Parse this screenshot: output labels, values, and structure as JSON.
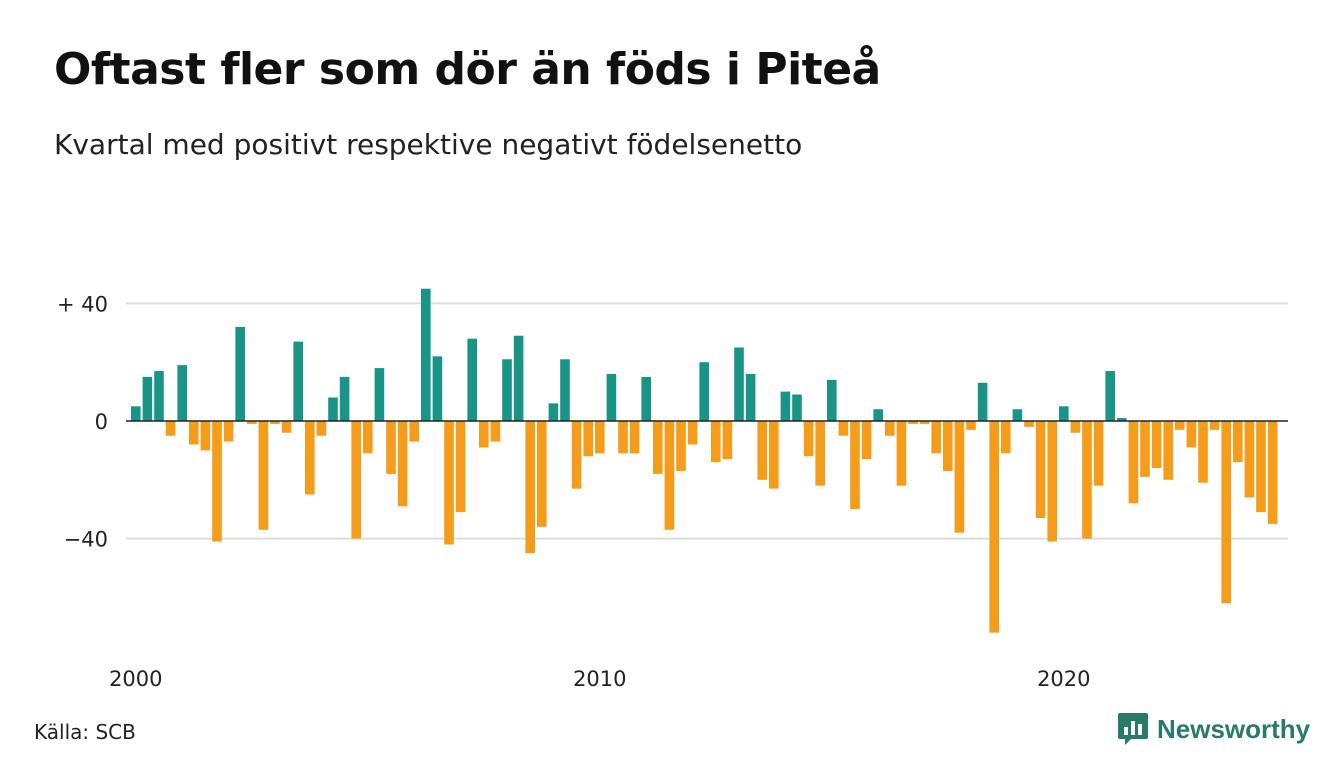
{
  "title": "Oftast fler som dör än föds i Piteå",
  "subtitle": "Kvartal med positivt respektive negativt födelsenetto",
  "source": "Källa: SCB",
  "brand": {
    "name": "Newsworthy",
    "color": "#2a7a6c",
    "icon": "bar-chart-speech-icon"
  },
  "colors": {
    "positive": "#1b9488",
    "negative": "#f59c1a",
    "grid": "#dddddd",
    "zero_line": "#222222"
  },
  "chart_data": {
    "type": "bar",
    "title": "Oftast fler som dör än föds i Piteå",
    "subtitle": "Kvartal med positivt respektive negativt födelsenetto",
    "x_start": "2000Q1",
    "x_ticks": [
      {
        "label": "2000",
        "value": "2000Q1"
      },
      {
        "label": "2010",
        "value": "2010Q1"
      },
      {
        "label": "2020",
        "value": "2020Q1"
      }
    ],
    "y_ticks": [
      {
        "label": "+ 40",
        "value": 40
      },
      {
        "label": "0",
        "value": 0
      },
      {
        "label": "−40",
        "value": -40
      }
    ],
    "ylim": [
      -75,
      45
    ],
    "grid": true,
    "legend": "none",
    "values": [
      5,
      15,
      17,
      -5,
      19,
      -8,
      -10,
      -41,
      -7,
      32,
      -1,
      -37,
      -1,
      -4,
      27,
      -25,
      -5,
      8,
      15,
      -40,
      -11,
      18,
      -18,
      -29,
      -7,
      45,
      22,
      -42,
      -31,
      28,
      -9,
      -7,
      21,
      29,
      -45,
      -36,
      6,
      21,
      -23,
      -12,
      -11,
      16,
      -11,
      -11,
      15,
      -18,
      -37,
      -17,
      -8,
      20,
      -14,
      -13,
      25,
      16,
      -20,
      -23,
      10,
      9,
      -12,
      -22,
      14,
      -5,
      -30,
      -13,
      4,
      -5,
      -22,
      -1,
      -1,
      -11,
      -17,
      -38,
      -3,
      13,
      -72,
      -11,
      4,
      -2,
      -33,
      -41,
      5,
      -4,
      -40,
      -22,
      17,
      1,
      -28,
      -19,
      -16,
      -20,
      -3,
      -9,
      -21,
      -3,
      -62,
      -14,
      -26,
      -31,
      -35
    ]
  }
}
